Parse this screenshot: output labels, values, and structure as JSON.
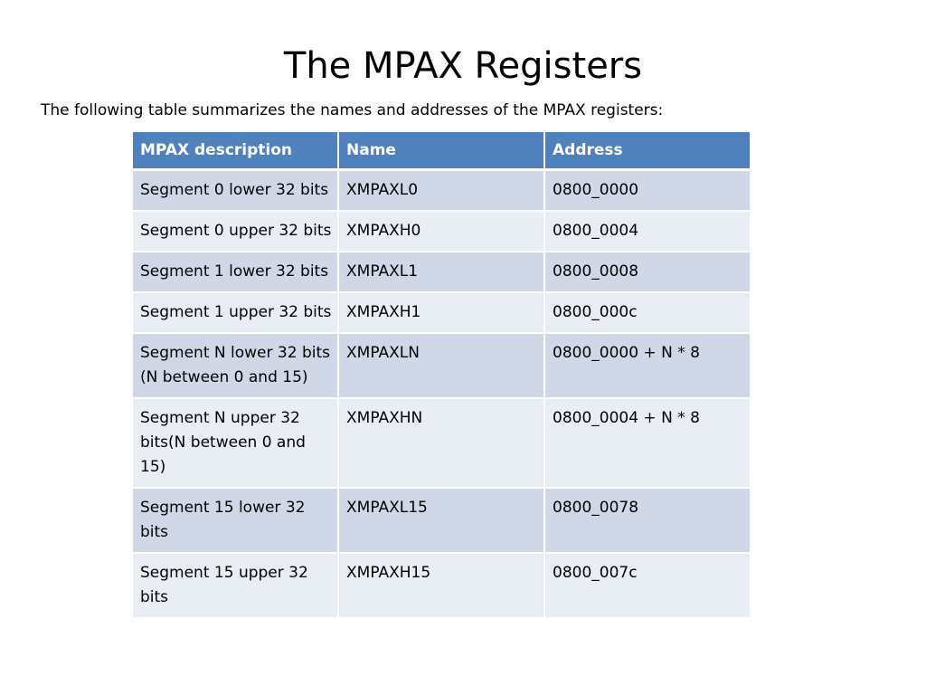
{
  "title": "The MPAX Registers",
  "intro": "The following table summarizes the names and addresses of the MPAX registers:",
  "colors": {
    "header_bg": "#4f81bd",
    "row_odd_bg": "#d0d8e8",
    "row_even_bg": "#e9edf4"
  },
  "table": {
    "headers": [
      "MPAX description",
      "Name",
      "Address"
    ],
    "rows": [
      {
        "description": "Segment 0 lower 32 bits",
        "name": "XMPAXL0",
        "address": "0800_0000"
      },
      {
        "description": "Segment 0 upper 32 bits",
        "name": "XMPAXH0",
        "address": "0800_0004"
      },
      {
        "description": "Segment 1 lower 32 bits",
        "name": "XMPAXL1",
        "address": "0800_0008"
      },
      {
        "description": "Segment 1 upper 32 bits",
        "name": "XMPAXH1",
        "address": "0800_000c"
      },
      {
        "description": "Segment N lower 32 bits (N between 0 and 15)",
        "name": "XMPAXLN",
        "address": "0800_0000 + N * 8"
      },
      {
        "description": "Segment N upper 32 bits(N between 0 and 15)",
        "name": "XMPAXHN",
        "address": "0800_0004 + N * 8"
      },
      {
        "description": "Segment 15 lower 32 bits",
        "name": "XMPAXL15",
        "address": "0800_0078"
      },
      {
        "description": "Segment 15 upper 32 bits",
        "name": "XMPAXH15",
        "address": "0800_007c"
      }
    ]
  }
}
